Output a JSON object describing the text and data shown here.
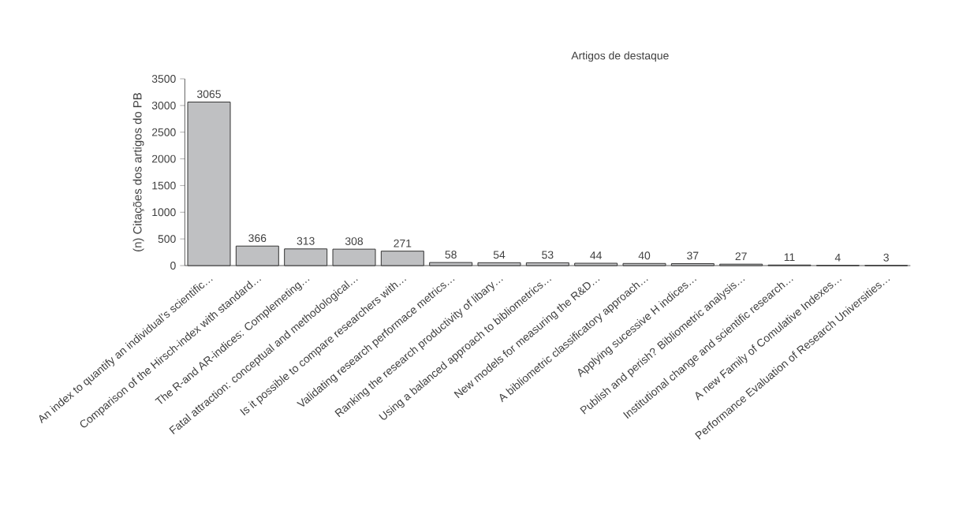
{
  "chart_data": {
    "type": "bar",
    "title": "Artigos de destaque",
    "ylabel": "(n) Citações dos artigos do PB",
    "categories": [
      "An index to quantify an individual’s scientific…",
      "Comparison of the Hirsch-index with standard…",
      "The R-and AR-indices: Complemeting…",
      "Fatal attraction: conceptual and methodological…",
      "Is it possible to compare researchers with…",
      "Validating research performace metrics…",
      "Ranking the research productivity of libary…",
      "Using a balanced approach to bibliometrics…",
      "New models for measuring the R&D…",
      "A bibliometric classificatory approach…",
      "Applying sucessive H indices…",
      "Publish and perish? Bibliometric analysis…",
      "Institutional change and scientific research…",
      "A new Family of Comulative Indexes…",
      "Performance Evaluation of Research Universities…"
    ],
    "values": [
      3065,
      366,
      313,
      308,
      271,
      58,
      54,
      53,
      44,
      40,
      37,
      27,
      11,
      4,
      3
    ],
    "color": "#bfc0c2",
    "data_labels": true,
    "ylim": [
      0,
      3500
    ],
    "yticks": [
      0,
      500,
      1000,
      1500,
      2000,
      2500,
      3000,
      3500
    ]
  }
}
